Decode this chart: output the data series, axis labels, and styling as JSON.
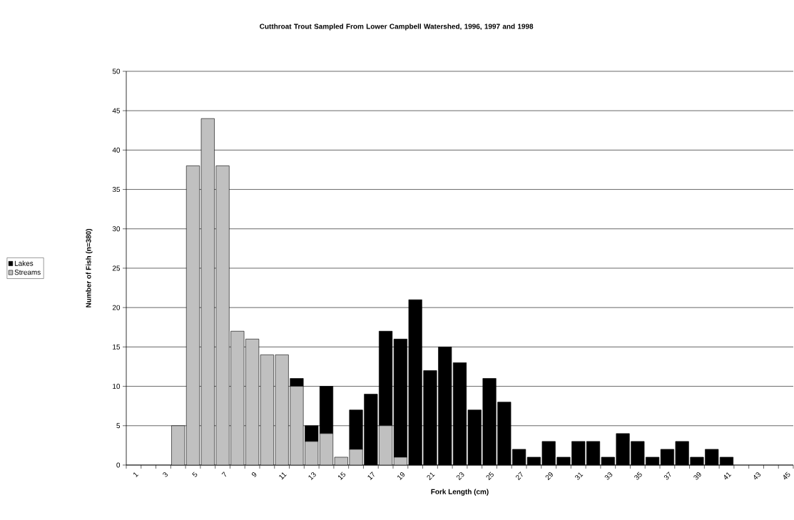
{
  "chart_data": {
    "type": "bar",
    "title": "Cutthroat Trout Sampled From Lower Campbell Watershed, 1996, 1997 and 1998",
    "xlabel": "Fork Length (cm)",
    "ylabel": "Number of Fish  (n=380)",
    "categories": [
      "1",
      null,
      "3",
      null,
      "5",
      null,
      "7",
      null,
      "9",
      null,
      "11",
      null,
      "13",
      null,
      "15",
      null,
      "17",
      null,
      "19",
      null,
      "21",
      null,
      "23",
      null,
      "25",
      null,
      "27",
      null,
      "29",
      null,
      "31",
      null,
      "33",
      null,
      "35",
      null,
      "37",
      null,
      "39",
      null,
      "41",
      null,
      "43",
      null,
      "45"
    ],
    "series": [
      {
        "name": "Streams",
        "color": "#c0c0c0",
        "values": [
          0,
          0,
          0,
          5,
          38,
          44,
          38,
          17,
          16,
          14,
          14,
          10,
          3,
          4,
          1,
          2,
          0,
          5,
          1,
          0,
          0,
          0,
          0,
          0,
          0,
          0,
          0,
          0,
          0,
          0,
          0,
          0,
          0,
          0,
          0,
          0,
          0,
          0,
          0,
          0,
          0,
          0,
          0,
          0,
          0
        ]
      },
      {
        "name": "Lakes",
        "color": "#000000",
        "values": [
          0,
          0,
          0,
          0,
          0,
          0,
          0,
          0,
          0,
          0,
          0,
          1,
          2,
          6,
          0,
          5,
          9,
          12,
          15,
          21,
          12,
          15,
          13,
          7,
          11,
          8,
          2,
          1,
          3,
          1,
          3,
          3,
          1,
          4,
          3,
          1,
          2,
          3,
          1,
          2,
          1,
          0,
          0,
          0,
          0
        ]
      }
    ],
    "stacked": true,
    "ylim": [
      0,
      50
    ],
    "yticks": [
      0,
      5,
      10,
      15,
      20,
      25,
      30,
      35,
      40,
      45,
      50
    ],
    "grid": "y",
    "legend": "left"
  }
}
